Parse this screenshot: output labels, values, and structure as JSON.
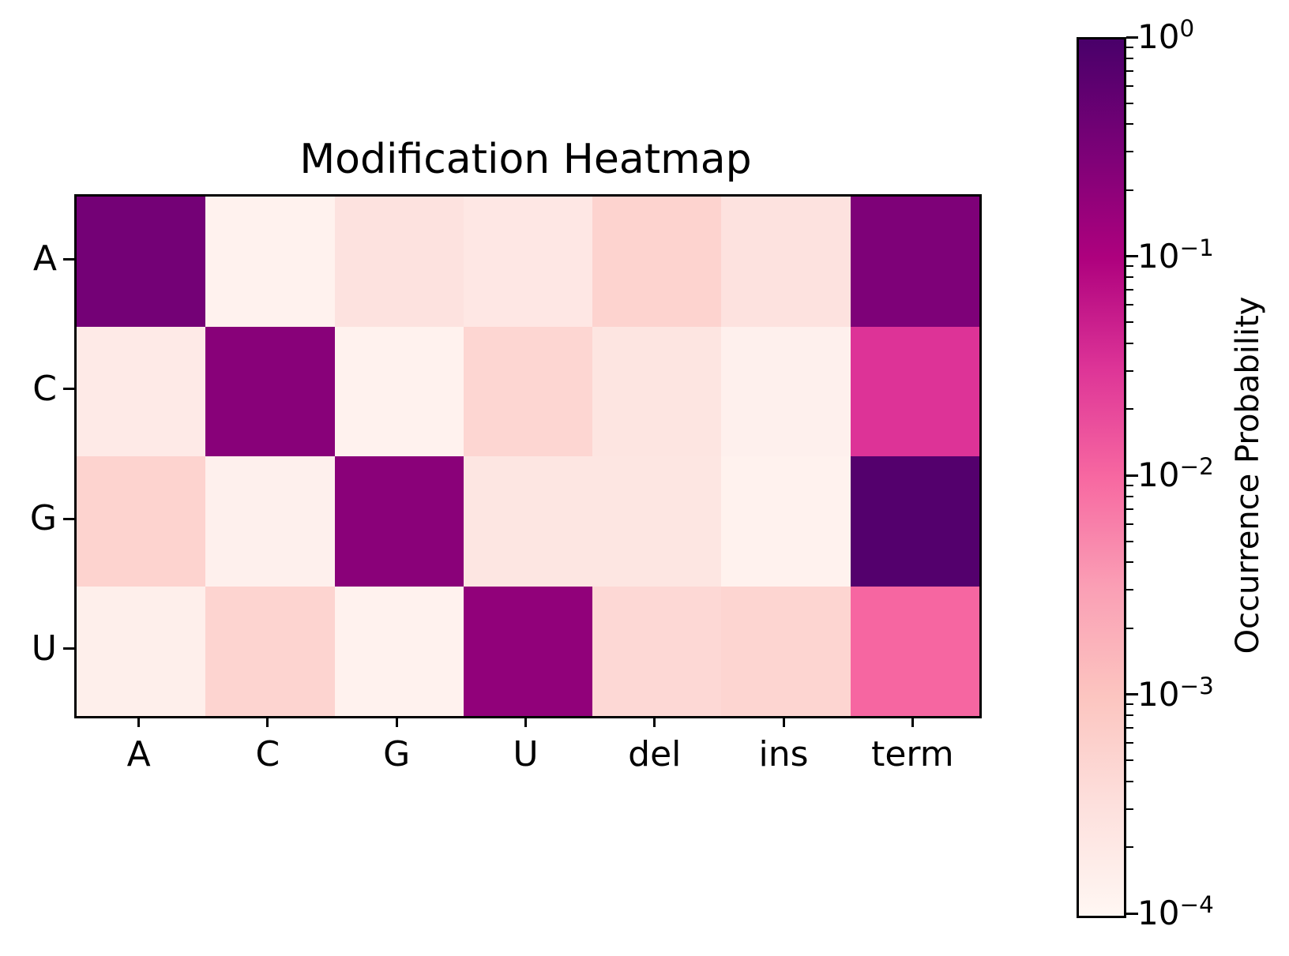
{
  "figure": {
    "background_color": "#ffffff",
    "text_color": "#000000"
  },
  "chart_data": {
    "type": "heatmap",
    "title": "Modification Heatmap",
    "rows": [
      "A",
      "C",
      "G",
      "U"
    ],
    "columns": [
      "A",
      "C",
      "G",
      "U",
      "del",
      "ins",
      "term"
    ],
    "values": [
      [
        0.36,
        0.00013,
        0.00029,
        0.00022,
        0.00055,
        0.00028,
        0.29
      ],
      [
        0.00019,
        0.23,
        0.00013,
        0.00048,
        0.00025,
        0.00014,
        0.032
      ],
      [
        0.00055,
        0.00014,
        0.22,
        0.00024,
        0.00024,
        0.00013,
        0.77
      ],
      [
        0.00015,
        0.00052,
        0.00013,
        0.19,
        0.00044,
        0.0005,
        0.0105
      ]
    ],
    "scale": "log",
    "vmin": 0.0001,
    "vmax": 1,
    "colormap_name": "RdPu",
    "colormap_stops": [
      "#fff7f3",
      "#fde0dd",
      "#fcc5c0",
      "#fa9fb5",
      "#f768a1",
      "#dd3497",
      "#ae017e",
      "#7a0177",
      "#49006a"
    ],
    "grid": false,
    "colorbar": {
      "label": "Occurrence Probability",
      "tick_exponents": [
        0,
        -1,
        -2,
        -3,
        -4
      ],
      "tick_base": "10",
      "minus_sign": "−"
    }
  }
}
